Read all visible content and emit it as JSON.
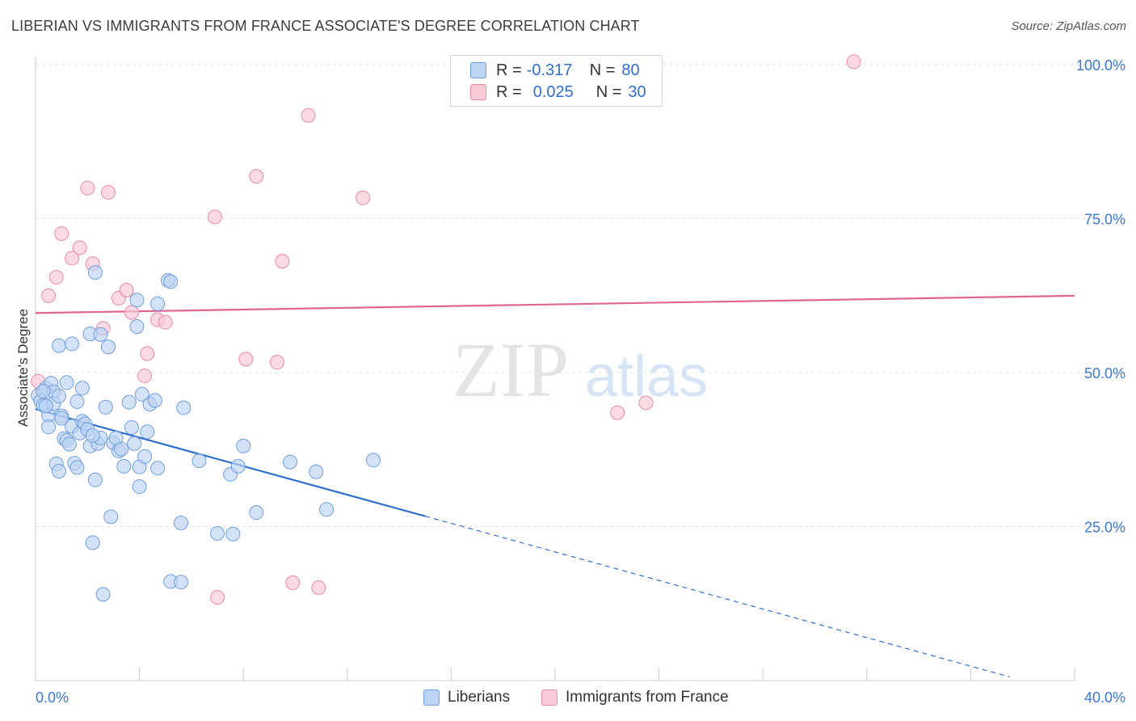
{
  "title": "LIBERIAN VS IMMIGRANTS FROM FRANCE ASSOCIATE'S DEGREE CORRELATION CHART",
  "source": "Source: ZipAtlas.com",
  "watermark": {
    "zip": "ZIP",
    "atlas": "atlas"
  },
  "legend": {
    "rows": [
      {
        "r_label": "R =",
        "r_value": "-0.317",
        "n_label": "N =",
        "n_value": "80"
      },
      {
        "r_label": "R =",
        "r_value": "0.025",
        "n_label": "N =",
        "n_value": "30"
      }
    ]
  },
  "bottom_legend": {
    "series1": "Liberians",
    "series2": "Immigrants from France"
  },
  "colors": {
    "blue_fill": "#bcd3f3",
    "blue_stroke": "#6f9fdf",
    "blue_line": "#2f6fd0",
    "pink_fill": "#f9cad8",
    "pink_stroke": "#e98aa9",
    "pink_line": "#e0668e",
    "axis_text": "#3a78d4"
  },
  "chart_data": {
    "type": "scatter",
    "title": "LIBERIAN VS IMMIGRANTS FROM FRANCE ASSOCIATE'S DEGREE CORRELATION CHART",
    "xlabel": "",
    "ylabel": "Associate's Degree",
    "xlim": [
      0,
      40
    ],
    "ylim": [
      0,
      102
    ],
    "x_tick_labels": [
      "0.0%",
      "40.0%"
    ],
    "y_ticks": [
      25,
      50,
      75,
      100
    ],
    "y_tick_labels": [
      "25.0%",
      "50.0%",
      "75.0%",
      "100.0%"
    ],
    "grid": true,
    "legend_position": "top-center",
    "series": [
      {
        "name": "Liberians",
        "r": -0.317,
        "n": 80,
        "trend": {
          "x0": 0,
          "y0": 44.1,
          "x1": 15,
          "y1": 26.7,
          "dashed_to_x": 37.5
        },
        "points": [
          [
            0.1,
            46.3
          ],
          [
            0.2,
            45.4
          ],
          [
            0.3,
            44.7
          ],
          [
            0.4,
            47.5
          ],
          [
            0.5,
            43.1
          ],
          [
            0.6,
            48.3
          ],
          [
            0.7,
            46.9
          ],
          [
            0.7,
            45.0
          ],
          [
            0.5,
            41.2
          ],
          [
            0.4,
            44.6
          ],
          [
            0.9,
            46.2
          ],
          [
            0.8,
            35.2
          ],
          [
            1.0,
            43.0
          ],
          [
            0.9,
            34.0
          ],
          [
            0.9,
            54.4
          ],
          [
            1.1,
            39.3
          ],
          [
            1.2,
            48.4
          ],
          [
            1.2,
            39.0
          ],
          [
            1.3,
            38.4
          ],
          [
            1.4,
            41.3
          ],
          [
            1.5,
            35.3
          ],
          [
            1.4,
            54.7
          ],
          [
            1.6,
            34.6
          ],
          [
            1.6,
            45.3
          ],
          [
            1.7,
            40.2
          ],
          [
            1.8,
            47.5
          ],
          [
            1.8,
            42.1
          ],
          [
            1.9,
            41.7
          ],
          [
            2.0,
            40.8
          ],
          [
            2.1,
            38.1
          ],
          [
            2.1,
            56.3
          ],
          [
            2.2,
            22.4
          ],
          [
            2.3,
            32.6
          ],
          [
            2.3,
            66.3
          ],
          [
            2.4,
            38.5
          ],
          [
            2.5,
            39.4
          ],
          [
            2.5,
            56.2
          ],
          [
            2.6,
            14.0
          ],
          [
            2.7,
            44.4
          ],
          [
            2.8,
            54.2
          ],
          [
            2.9,
            26.6
          ],
          [
            3.0,
            38.6
          ],
          [
            3.1,
            39.4
          ],
          [
            3.2,
            37.3
          ],
          [
            3.3,
            37.6
          ],
          [
            3.4,
            34.8
          ],
          [
            3.6,
            45.2
          ],
          [
            3.7,
            41.1
          ],
          [
            3.8,
            38.5
          ],
          [
            3.9,
            61.8
          ],
          [
            3.9,
            57.5
          ],
          [
            4.0,
            31.5
          ],
          [
            4.0,
            34.7
          ],
          [
            4.1,
            46.5
          ],
          [
            4.2,
            36.4
          ],
          [
            4.3,
            40.4
          ],
          [
            4.4,
            44.9
          ],
          [
            4.6,
            45.5
          ],
          [
            4.7,
            34.5
          ],
          [
            4.7,
            61.2
          ],
          [
            5.1,
            65.0
          ],
          [
            5.2,
            64.8
          ],
          [
            5.2,
            16.1
          ],
          [
            5.6,
            16.0
          ],
          [
            5.6,
            25.6
          ],
          [
            5.7,
            44.3
          ],
          [
            6.3,
            35.7
          ],
          [
            7.0,
            23.9
          ],
          [
            7.5,
            33.5
          ],
          [
            7.6,
            23.8
          ],
          [
            7.8,
            34.8
          ],
          [
            8.0,
            38.1
          ],
          [
            8.5,
            27.3
          ],
          [
            9.8,
            35.5
          ],
          [
            10.8,
            33.9
          ],
          [
            11.2,
            27.8
          ],
          [
            13.0,
            35.8
          ],
          [
            1.0,
            42.6
          ],
          [
            2.2,
            39.8
          ],
          [
            0.3,
            47.0
          ]
        ]
      },
      {
        "name": "Immigrants from France",
        "r": 0.025,
        "n": 30,
        "trend": {
          "x0": 0,
          "y0": 59.7,
          "x1": 40,
          "y1": 62.5
        },
        "points": [
          [
            0.1,
            48.6
          ],
          [
            0.5,
            62.5
          ],
          [
            0.8,
            65.5
          ],
          [
            1.0,
            72.6
          ],
          [
            1.4,
            68.6
          ],
          [
            1.7,
            70.3
          ],
          [
            2.0,
            80.0
          ],
          [
            2.2,
            67.7
          ],
          [
            2.6,
            57.2
          ],
          [
            2.8,
            79.3
          ],
          [
            3.2,
            62.1
          ],
          [
            3.5,
            63.4
          ],
          [
            3.7,
            59.8
          ],
          [
            4.2,
            49.5
          ],
          [
            4.3,
            53.1
          ],
          [
            4.7,
            58.6
          ],
          [
            5.0,
            58.2
          ],
          [
            6.9,
            75.3
          ],
          [
            7.0,
            13.5
          ],
          [
            8.1,
            52.2
          ],
          [
            8.5,
            81.9
          ],
          [
            9.3,
            51.7
          ],
          [
            9.5,
            68.1
          ],
          [
            9.9,
            15.9
          ],
          [
            10.5,
            91.8
          ],
          [
            10.9,
            15.1
          ],
          [
            12.6,
            78.4
          ],
          [
            22.4,
            43.5
          ],
          [
            23.5,
            45.1
          ],
          [
            31.5,
            100.5
          ]
        ]
      }
    ]
  }
}
